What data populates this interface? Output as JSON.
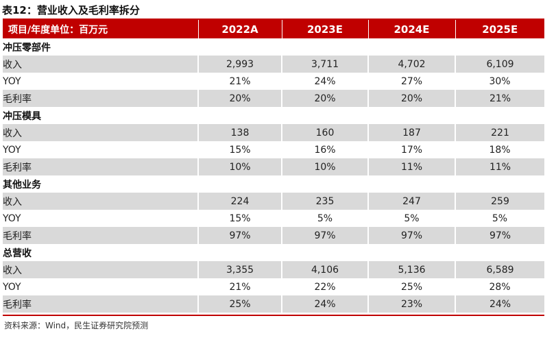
{
  "title": "表12：营业收入及毛利率拆分",
  "header": [
    "项目/年度单位：百万元",
    "2022A",
    "2023E",
    "2024E",
    "2025E"
  ],
  "sections": [
    {
      "name": "冲压零部件",
      "rows": [
        {
          "label": "收入",
          "values": [
            "2,993",
            "3,711",
            "4,702",
            "6,109"
          ]
        },
        {
          "label": "YOY",
          "values": [
            "21%",
            "24%",
            "27%",
            "30%"
          ]
        },
        {
          "label": "毛利率",
          "values": [
            "20%",
            "20%",
            "20%",
            "21%"
          ]
        }
      ]
    },
    {
      "name": "冲压模具",
      "rows": [
        {
          "label": "收入",
          "values": [
            "138",
            "160",
            "187",
            "221"
          ]
        },
        {
          "label": "YOY",
          "values": [
            "15%",
            "16%",
            "17%",
            "18%"
          ]
        },
        {
          "label": "毛利率",
          "values": [
            "10%",
            "10%",
            "11%",
            "11%"
          ]
        }
      ]
    },
    {
      "name": "其他业务",
      "rows": [
        {
          "label": "收入",
          "values": [
            "224",
            "235",
            "247",
            "259"
          ]
        },
        {
          "label": "YOY",
          "values": [
            "15%",
            "5%",
            "5%",
            "5%"
          ]
        },
        {
          "label": "毛利率",
          "values": [
            "97%",
            "97%",
            "97%",
            "97%"
          ]
        }
      ]
    },
    {
      "name": "总营收",
      "rows": [
        {
          "label": "收入",
          "values": [
            "3,355",
            "4,106",
            "5,136",
            "6,589"
          ]
        },
        {
          "label": "YOY",
          "values": [
            "21%",
            "22%",
            "25%",
            "28%"
          ]
        },
        {
          "label": "毛利率",
          "values": [
            "25%",
            "24%",
            "23%",
            "24%"
          ]
        }
      ]
    }
  ],
  "source": "资料来源：Wind，民生证券研究院预测",
  "colors": {
    "accent": "#c00000",
    "row_shade": "#d9d9d9"
  }
}
